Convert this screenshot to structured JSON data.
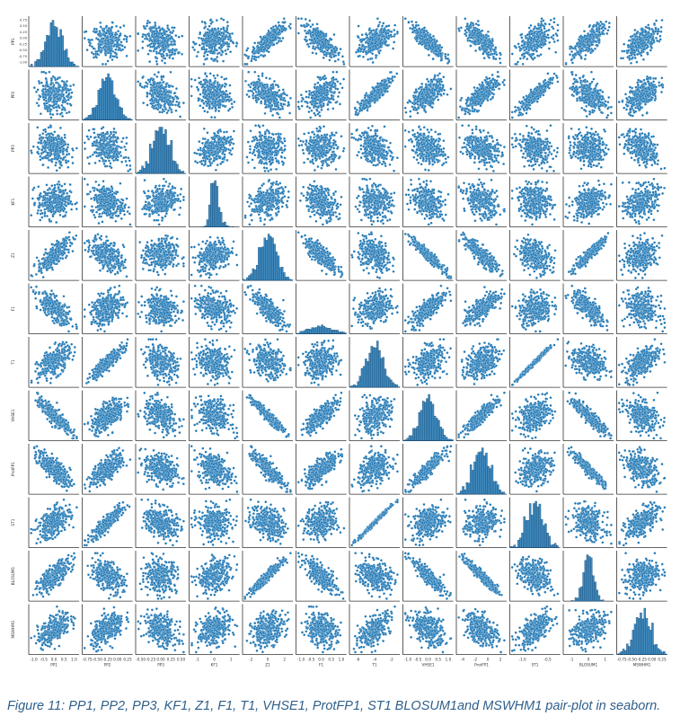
{
  "caption": "Figure 11: PP1, PP2, PP3, KF1, Z1, F1, T1, VHSE1, ProtFP1, ST1 BLOSUM1and MSWHM1 pair-plot in seaborn.",
  "colors": {
    "point": "#1f77b4",
    "point_edge": "#ffffff",
    "hist": "#1f77b4",
    "axis": "#333333"
  },
  "chart_data": {
    "type": "scatter",
    "subtype": "pair-plot",
    "library": "seaborn",
    "variables": [
      "PP1",
      "PP2",
      "PP3",
      "KF1",
      "Z1",
      "F1",
      "T1",
      "VHSE1",
      "ProtFP1",
      "ST1",
      "BLOSUM1",
      "MSWHM1"
    ],
    "axis_labels": [
      "PP1",
      "PP2",
      "PP3",
      "KF1",
      "Z1",
      "F1",
      "T1",
      "VHSE1",
      "ProtFP1",
      "ST1",
      "BLOSUM1",
      "MSWHM1"
    ],
    "diagonal": "histogram",
    "ranges": [
      [
        -1.0,
        1.0
      ],
      [
        -0.75,
        0.25
      ],
      [
        -0.5,
        0.5
      ],
      [
        -1.5,
        1.5
      ],
      [
        -4,
        4
      ],
      [
        -1.5,
        1.5
      ],
      [
        -8,
        0
      ],
      [
        -1.5,
        1.5
      ],
      [
        -5,
        3
      ],
      [
        -1.5,
        0.0
      ],
      [
        -2,
        2
      ],
      [
        -0.75,
        0.25
      ]
    ],
    "x_ticks": [
      [
        "-1.0",
        "-0.5",
        "0.0",
        "0.5",
        "1.0"
      ],
      [
        "-0.75",
        "-0.50",
        "-0.25",
        "0.00",
        "0.25"
      ],
      [
        "-0.50",
        "-0.25",
        "0.00",
        "0.25",
        "0.50"
      ],
      [
        "-1",
        "0",
        "1"
      ],
      [
        "-2",
        "0",
        "2"
      ],
      [
        "-1.0",
        "-0.5",
        "0.0",
        "0.5",
        "1.0"
      ],
      [
        "-6",
        "-4",
        "-2"
      ],
      [
        "-1.0",
        "-0.5",
        "0.0",
        "0.5",
        "1.0"
      ],
      [
        "-4",
        "-2",
        "0",
        "2"
      ],
      [
        "-1.0",
        "-0.5"
      ],
      [
        "-1",
        "0",
        "1"
      ],
      [
        "-0.75",
        "-0.50",
        "-0.25",
        "0.00",
        "0.25"
      ]
    ],
    "y_ticks": [
      [
        "0.75",
        "0.50",
        "0.25",
        "0.00",
        "-0.25",
        "-0.50",
        "-0.75",
        "-1.00"
      ],
      [],
      [],
      [],
      [],
      [],
      [],
      [],
      [],
      [],
      [],
      []
    ],
    "correlations": [
      [
        1.0,
        -0.05,
        -0.2,
        0.05,
        0.8,
        -0.7,
        0.55,
        -0.85,
        -0.75,
        0.5,
        0.75,
        0.6
      ],
      [
        -0.05,
        1.0,
        -0.3,
        -0.25,
        -0.45,
        0.4,
        0.9,
        0.6,
        0.7,
        0.9,
        -0.4,
        0.55
      ],
      [
        -0.2,
        -0.3,
        1.0,
        0.35,
        0.0,
        -0.1,
        -0.35,
        -0.35,
        -0.3,
        -0.3,
        -0.05,
        -0.4
      ],
      [
        0.05,
        -0.25,
        0.35,
        1.0,
        0.3,
        -0.3,
        -0.1,
        -0.3,
        -0.35,
        -0.05,
        0.3,
        0.3
      ],
      [
        0.8,
        -0.45,
        0.0,
        0.3,
        1.0,
        -0.8,
        -0.3,
        -0.95,
        -0.85,
        -0.3,
        0.95,
        0.3
      ],
      [
        -0.7,
        0.4,
        -0.1,
        -0.3,
        -0.8,
        1.0,
        0.2,
        0.8,
        0.75,
        0.2,
        -0.75,
        -0.2
      ],
      [
        0.55,
        0.9,
        -0.35,
        -0.1,
        -0.3,
        0.2,
        1.0,
        0.3,
        0.4,
        0.99,
        -0.3,
        0.6
      ],
      [
        -0.85,
        0.6,
        -0.35,
        -0.3,
        -0.95,
        0.8,
        0.3,
        1.0,
        0.9,
        0.3,
        -0.9,
        -0.4
      ],
      [
        -0.75,
        0.7,
        -0.3,
        -0.35,
        -0.85,
        0.75,
        0.4,
        0.9,
        1.0,
        0.3,
        -0.95,
        -0.4
      ],
      [
        0.5,
        0.9,
        -0.3,
        -0.05,
        -0.3,
        0.2,
        0.99,
        0.3,
        0.3,
        1.0,
        -0.3,
        0.6
      ],
      [
        0.75,
        -0.4,
        -0.05,
        0.3,
        0.95,
        -0.75,
        -0.3,
        -0.9,
        -0.95,
        -0.3,
        1.0,
        0.3
      ],
      [
        0.6,
        0.55,
        -0.4,
        0.3,
        0.3,
        -0.2,
        0.6,
        -0.4,
        -0.4,
        0.6,
        0.3,
        1.0
      ]
    ],
    "diagonal_shapes": [
      "normal",
      "normal",
      "normal",
      "right-skewed",
      "normal",
      "flat-wide",
      "normal",
      "normal",
      "normal",
      "normal",
      "narrow",
      "normal"
    ],
    "grid": false,
    "legend": "none"
  }
}
